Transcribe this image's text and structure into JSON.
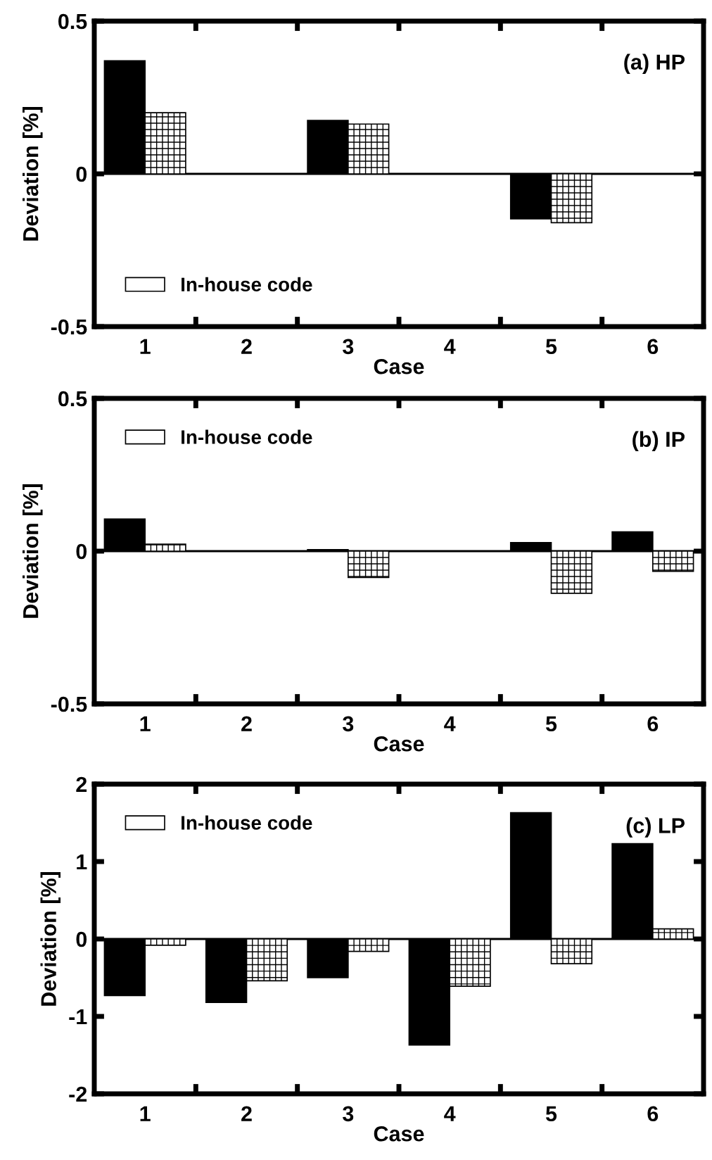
{
  "chart_data": [
    {
      "type": "bar",
      "categories": [
        "1",
        "2",
        "3",
        "4",
        "5",
        "6"
      ],
      "xlabel": "Case",
      "ylabel": "Deviation [%]",
      "ylim": [
        -0.5,
        0.5
      ],
      "yticks": [
        -0.5,
        0,
        0.5
      ],
      "legend": "bottom left",
      "grid": false,
      "annotations": [
        "(a) HP"
      ],
      "ref_lines": [
        {
          "axis": "y",
          "value": 0,
          "color": "#000000"
        }
      ],
      "series": [
        {
          "color": "#000000",
          "values": [
            0.37,
            null,
            0.175,
            null,
            -0.147,
            null
          ]
        },
        {
          "name": "In-house code",
          "color": "#ffffff",
          "values": [
            0.2,
            null,
            0.163,
            null,
            -0.16,
            null
          ]
        }
      ]
    },
    {
      "type": "bar",
      "categories": [
        "1",
        "2",
        "3",
        "4",
        "5",
        "6"
      ],
      "xlabel": "Case",
      "ylabel": "Deviation [%]",
      "ylim": [
        -0.5,
        0.5
      ],
      "yticks": [
        -0.5,
        0,
        0.5
      ],
      "legend": "top left",
      "grid": false,
      "annotations": [
        "(b) IP"
      ],
      "ref_lines": [
        {
          "axis": "y",
          "value": 0,
          "color": "#000000"
        }
      ],
      "series": [
        {
          "color": "#000000",
          "values": [
            0.105,
            null,
            0.005,
            null,
            0.028,
            0.063
          ]
        },
        {
          "name": "In-house code",
          "color": "#ffffff",
          "values": [
            0.023,
            null,
            -0.086,
            null,
            -0.138,
            -0.066
          ]
        }
      ]
    },
    {
      "type": "bar",
      "categories": [
        "1",
        "2",
        "3",
        "4",
        "5",
        "6"
      ],
      "xlabel": "Case",
      "ylabel": "Deviation [%]",
      "ylim": [
        -2,
        2
      ],
      "yticks": [
        -2,
        -1,
        0,
        1,
        2
      ],
      "legend": "top left",
      "grid": false,
      "annotations": [
        "(c) LP"
      ],
      "ref_lines": [
        {
          "axis": "y",
          "value": 0,
          "color": "#000000"
        }
      ],
      "series": [
        {
          "color": "#000000",
          "values": [
            -0.73,
            -0.82,
            -0.5,
            -1.37,
            1.63,
            1.23
          ]
        },
        {
          "name": "In-house code",
          "color": "#ffffff",
          "values": [
            -0.08,
            -0.54,
            -0.16,
            -0.61,
            -0.32,
            0.13
          ]
        }
      ]
    }
  ]
}
